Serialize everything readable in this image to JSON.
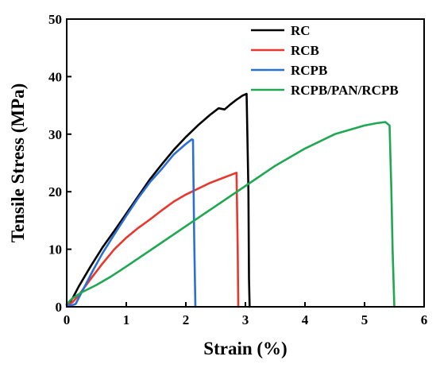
{
  "chart_data": {
    "type": "line",
    "xlabel": "Strain (%)",
    "ylabel": "Tensile Stress (MPa)",
    "xlim": [
      0,
      6
    ],
    "ylim": [
      0,
      50
    ],
    "xticks": [
      "0",
      "1",
      "2",
      "3",
      "4",
      "5",
      "6"
    ],
    "yticks": [
      "0",
      "10",
      "20",
      "30",
      "40",
      "50"
    ],
    "grid": false,
    "legend_position": "top-right",
    "series": [
      {
        "name": "RC",
        "color": "#000000",
        "x": [
          0.03,
          0.1,
          0.2,
          0.4,
          0.6,
          0.8,
          1.0,
          1.2,
          1.4,
          1.6,
          1.8,
          2.0,
          2.2,
          2.4,
          2.55,
          2.65,
          2.75,
          2.85,
          2.95,
          3.02,
          3.05,
          3.06,
          3.07
        ],
        "y": [
          0.5,
          1.5,
          3.5,
          7.0,
          10.3,
          13.2,
          16.2,
          19.2,
          22.2,
          24.8,
          27.3,
          29.5,
          31.5,
          33.3,
          34.5,
          34.3,
          35.2,
          36.0,
          36.7,
          37.0,
          20.0,
          5.0,
          0
        ]
      },
      {
        "name": "RCB",
        "color": "#e8382e",
        "x": [
          0.0,
          0.1,
          0.2,
          0.4,
          0.6,
          0.8,
          1.0,
          1.2,
          1.4,
          1.6,
          1.8,
          2.0,
          2.2,
          2.4,
          2.6,
          2.8,
          2.85,
          2.87,
          2.88
        ],
        "y": [
          0.3,
          0.8,
          2.0,
          4.8,
          7.5,
          10.0,
          12.0,
          13.7,
          15.2,
          16.8,
          18.3,
          19.5,
          20.5,
          21.5,
          22.3,
          23.1,
          23.3,
          10.0,
          0
        ]
      },
      {
        "name": "RCPB",
        "color": "#2b6fd4",
        "x": [
          0.0,
          0.1,
          0.15,
          0.2,
          0.3,
          0.45,
          0.6,
          0.8,
          1.0,
          1.2,
          1.4,
          1.6,
          1.8,
          2.0,
          2.1,
          2.12,
          2.14,
          2.16
        ],
        "y": [
          0.3,
          0.3,
          0.5,
          1.5,
          3.5,
          6.5,
          9.3,
          12.6,
          15.8,
          18.9,
          21.7,
          24.0,
          26.5,
          28.3,
          29.1,
          29.0,
          12.0,
          0
        ]
      },
      {
        "name": "RCPB/PAN/RCPB",
        "color": "#1fa851",
        "x": [
          0.0,
          0.1,
          0.25,
          0.5,
          0.75,
          1.0,
          1.5,
          2.0,
          2.5,
          3.0,
          3.5,
          4.0,
          4.5,
          5.0,
          5.2,
          5.35,
          5.42,
          5.45,
          5.47,
          5.5
        ],
        "y": [
          0.5,
          1.5,
          2.5,
          3.8,
          5.3,
          7.0,
          10.5,
          14.0,
          17.5,
          21.0,
          24.5,
          27.5,
          30.0,
          31.5,
          31.9,
          32.1,
          31.5,
          20.0,
          10.0,
          0
        ]
      }
    ]
  }
}
